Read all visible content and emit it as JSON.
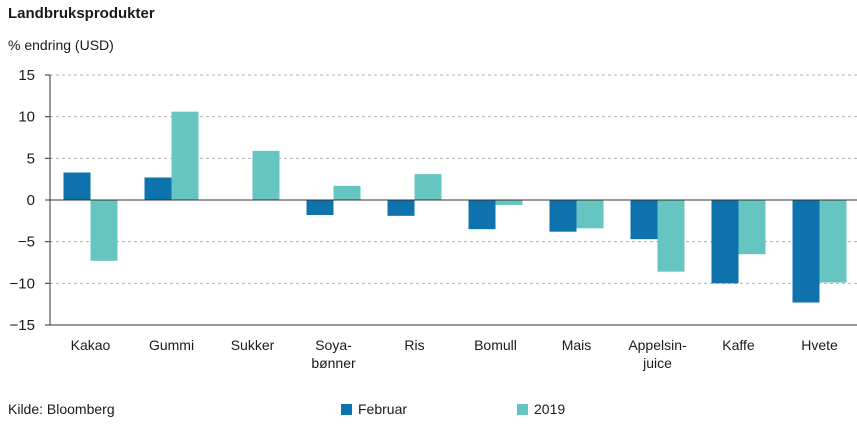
{
  "header": {
    "title": "Landbruksprodukter",
    "unit_label": "% endring (USD)"
  },
  "footer": {
    "source": "Kilde: Bloomberg"
  },
  "colors": {
    "februar": "#0e72ad",
    "y2019": "#66c5c0",
    "grid": "#b3b3b3",
    "axis": "#333333"
  },
  "chart_data": {
    "type": "bar",
    "title": "Landbruksprodukter",
    "ylabel": "% endring (USD)",
    "xlabel": "",
    "ylim": [
      -15,
      15
    ],
    "yticks": [
      15,
      10,
      5,
      0,
      -5,
      -10,
      -15
    ],
    "grid": true,
    "legend_position": "bottom",
    "categories": [
      [
        "Kakao"
      ],
      [
        "Gummi"
      ],
      [
        "Sukker"
      ],
      [
        "Soya-",
        "bønner"
      ],
      [
        "Ris"
      ],
      [
        "Bomull"
      ],
      [
        "Mais"
      ],
      [
        "Appelsin-",
        "juice"
      ],
      [
        "Kaffe"
      ],
      [
        "Hvete"
      ]
    ],
    "series": [
      {
        "name": "Februar",
        "values": [
          3.3,
          2.7,
          0,
          -1.8,
          -1.9,
          -3.5,
          -3.8,
          -4.7,
          -10.0,
          -12.3
        ]
      },
      {
        "name": "2019",
        "values": [
          -7.3,
          10.6,
          5.9,
          1.7,
          3.1,
          -0.6,
          -3.4,
          -8.6,
          -6.5,
          -9.9
        ]
      }
    ]
  }
}
